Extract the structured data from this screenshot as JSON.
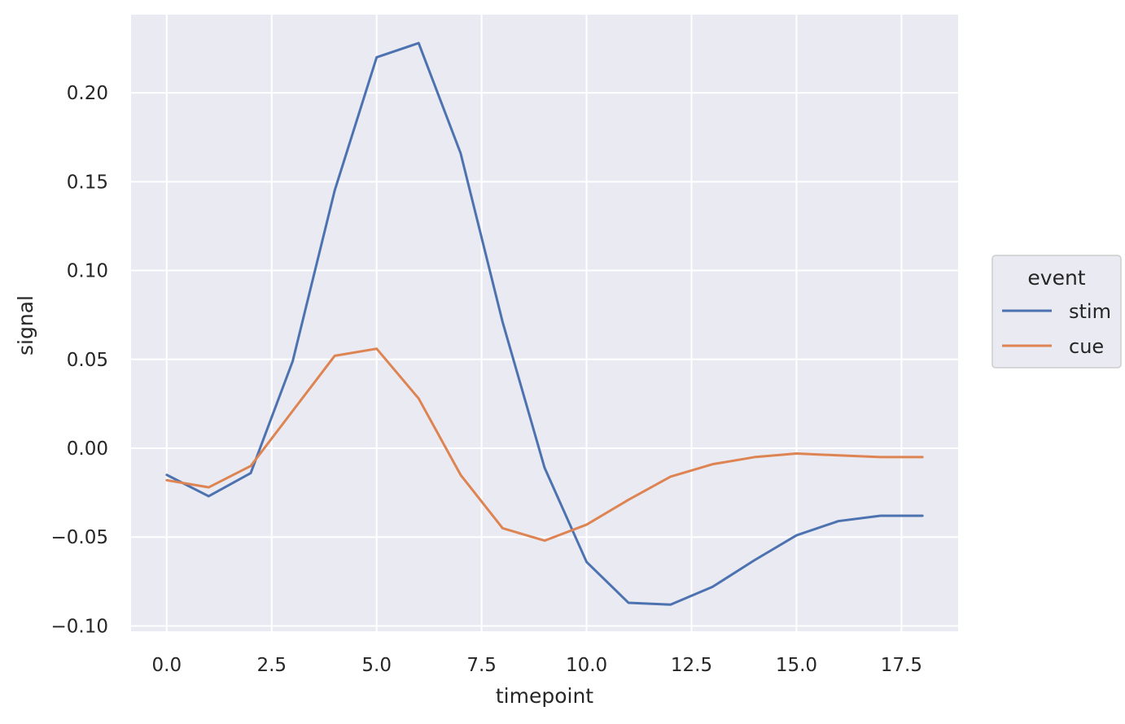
{
  "chart_data": {
    "type": "line",
    "xlabel": "timepoint",
    "ylabel": "signal",
    "x": [
      0,
      1,
      2,
      3,
      4,
      5,
      6,
      7,
      8,
      9,
      10,
      11,
      12,
      13,
      14,
      15,
      16,
      17,
      18
    ],
    "series": [
      {
        "name": "stim",
        "color": "#4c72b0",
        "values": [
          -0.015,
          -0.027,
          -0.014,
          0.049,
          0.145,
          0.22,
          0.228,
          0.166,
          0.071,
          -0.011,
          -0.064,
          -0.087,
          -0.088,
          -0.078,
          -0.063,
          -0.049,
          -0.041,
          -0.038,
          -0.038
        ]
      },
      {
        "name": "cue",
        "color": "#dd8452",
        "values": [
          -0.018,
          -0.022,
          -0.01,
          0.021,
          0.052,
          0.056,
          0.028,
          -0.015,
          -0.045,
          -0.052,
          -0.043,
          -0.029,
          -0.016,
          -0.009,
          -0.005,
          -0.003,
          -0.004,
          -0.005,
          -0.005
        ]
      }
    ],
    "xticks": [
      "0.0",
      "2.5",
      "5.0",
      "7.5",
      "10.0",
      "12.5",
      "15.0",
      "17.5"
    ],
    "xtick_values": [
      0,
      2.5,
      5,
      7.5,
      10,
      12.5,
      15,
      17.5
    ],
    "yticks": [
      "0.20",
      "0.15",
      "0.10",
      "0.05",
      "0.00",
      "−0.05",
      "−0.10"
    ],
    "ytick_values": [
      0.2,
      0.15,
      0.1,
      0.05,
      0.0,
      -0.05,
      -0.1
    ],
    "xlim": [
      -0.85,
      18.85
    ],
    "ylim": [
      -0.103,
      0.244
    ],
    "grid": true,
    "legend": {
      "title": "event",
      "placement": "outside-right"
    },
    "background_color": "#eaeaf2",
    "grid_color": "#ffffff"
  }
}
